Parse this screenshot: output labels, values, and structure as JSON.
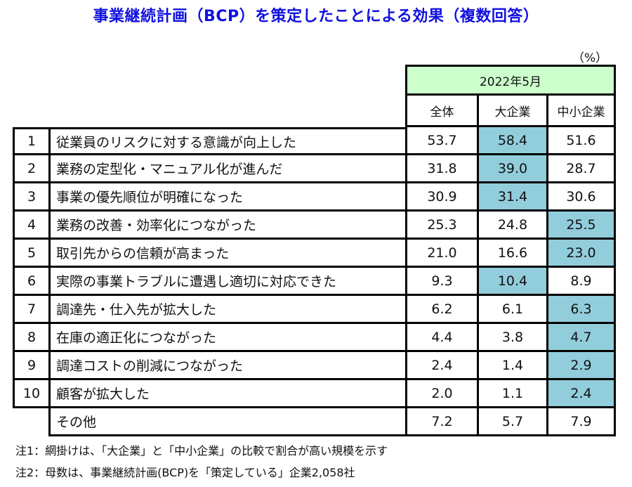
{
  "title": "事業継続計画（BCP）を策定したことによる効果（複数回答）",
  "unit": "（%）",
  "header": {
    "period": "2022年5月",
    "columns": [
      "全体",
      "大企業",
      "中小企業"
    ]
  },
  "colors": {
    "title": "#1010e0",
    "period_header_bg": "#ccffcc",
    "highlight_bg": "#92cddc"
  },
  "rows": [
    {
      "no": "1",
      "label": "従業員のリスクに対する意識が向上した",
      "values": [
        "53.7",
        "58.4",
        "51.6"
      ],
      "highlight": 1
    },
    {
      "no": "2",
      "label": "業務の定型化・マニュアル化が進んだ",
      "values": [
        "31.8",
        "39.0",
        "28.7"
      ],
      "highlight": 1
    },
    {
      "no": "3",
      "label": "事業の優先順位が明確になった",
      "values": [
        "30.9",
        "31.4",
        "30.6"
      ],
      "highlight": 1
    },
    {
      "no": "4",
      "label": "業務の改善・効率化につながった",
      "values": [
        "25.3",
        "24.8",
        "25.5"
      ],
      "highlight": 2
    },
    {
      "no": "5",
      "label": "取引先からの信頼が高まった",
      "values": [
        "21.0",
        "16.6",
        "23.0"
      ],
      "highlight": 2
    },
    {
      "no": "6",
      "label": "実際の事業トラブルに遭遇し適切に対応できた",
      "values": [
        "9.3",
        "10.4",
        "8.9"
      ],
      "highlight": 1
    },
    {
      "no": "7",
      "label": "調達先・仕入先が拡大した",
      "values": [
        "6.2",
        "6.1",
        "6.3"
      ],
      "highlight": 2
    },
    {
      "no": "8",
      "label": "在庫の適正化につながった",
      "values": [
        "4.4",
        "3.8",
        "4.7"
      ],
      "highlight": 2
    },
    {
      "no": "9",
      "label": "調達コストの削減につながった",
      "values": [
        "2.4",
        "1.4",
        "2.9"
      ],
      "highlight": 2
    },
    {
      "no": "10",
      "label": "顧客が拡大した",
      "values": [
        "2.0",
        "1.1",
        "2.4"
      ],
      "highlight": 2
    },
    {
      "no": "",
      "label": "その他",
      "values": [
        "7.2",
        "5.7",
        "7.9"
      ],
      "highlight": -1
    }
  ],
  "notes": [
    "注1：網掛けは、「大企業」と「中小企業」の比較で割合が高い規模を示す",
    "注2：母数は、事業継続計画(BCP)を「策定している」企業2,058社"
  ]
}
